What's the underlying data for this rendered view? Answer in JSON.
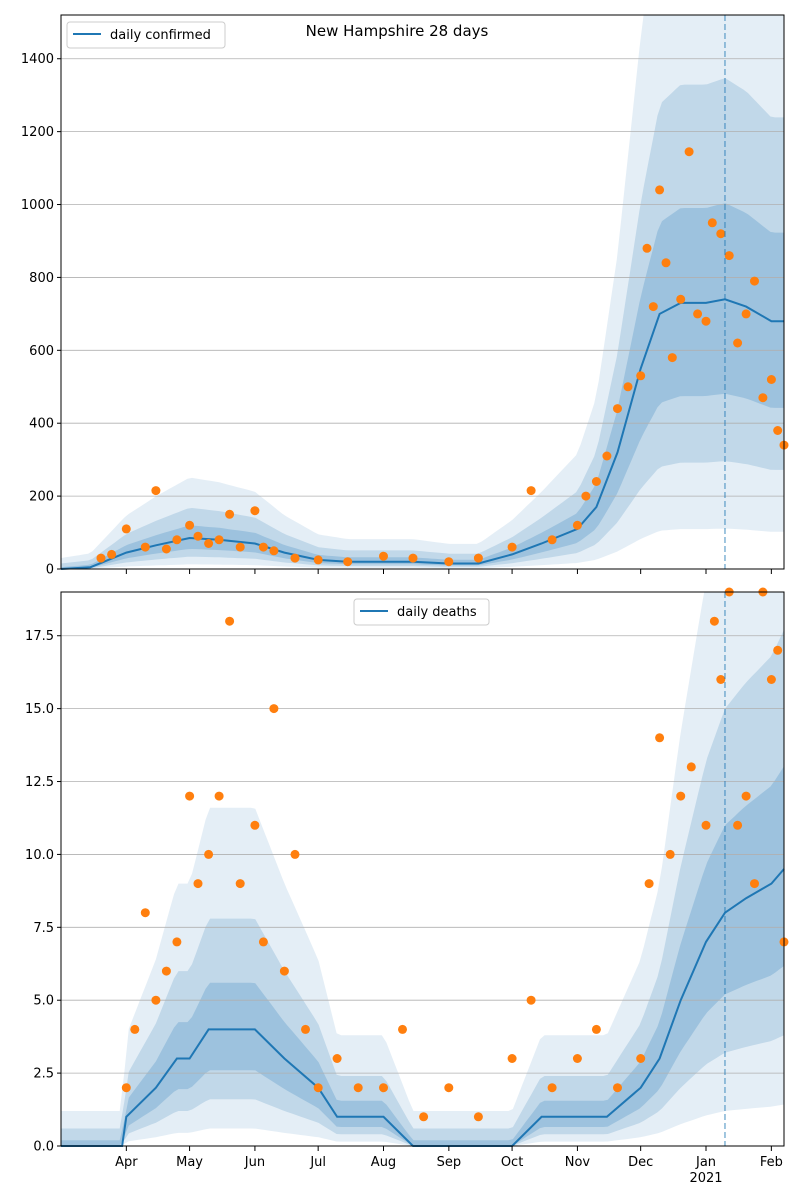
{
  "chart_data": [
    {
      "type": "line",
      "title": "New Hampshire 28 days",
      "xlabel": "",
      "ylabel": "",
      "ylim": [
        0,
        1520
      ],
      "yticks": [
        0,
        200,
        400,
        600,
        800,
        1000,
        1200,
        1400
      ],
      "grid": "horizontal",
      "legend": {
        "placement": "top-left",
        "entries": [
          "daily confirmed"
        ]
      },
      "series": [
        {
          "name": "daily confirmed",
          "kind": "line",
          "x": [
            "2020-03-01",
            "2020-03-15",
            "2020-04-01",
            "2020-04-15",
            "2020-05-01",
            "2020-05-15",
            "2020-06-01",
            "2020-06-15",
            "2020-07-01",
            "2020-07-15",
            "2020-08-01",
            "2020-08-15",
            "2020-09-01",
            "2020-09-15",
            "2020-10-01",
            "2020-10-15",
            "2020-11-01",
            "2020-11-10",
            "2020-11-20",
            "2020-12-01",
            "2020-12-10",
            "2020-12-20",
            "2021-01-01",
            "2021-01-10",
            "2021-01-20",
            "2021-02-01",
            "2021-02-07"
          ],
          "values": [
            0,
            5,
            45,
            65,
            85,
            80,
            70,
            45,
            25,
            20,
            20,
            20,
            15,
            15,
            40,
            70,
            110,
            170,
            320,
            550,
            700,
            730,
            730,
            740,
            720,
            680,
            680
          ]
        },
        {
          "name": "",
          "kind": "points",
          "x": [
            "2020-03-20",
            "2020-03-25",
            "2020-04-01",
            "2020-04-10",
            "2020-04-15",
            "2020-04-20",
            "2020-04-25",
            "2020-05-01",
            "2020-05-05",
            "2020-05-10",
            "2020-05-15",
            "2020-05-20",
            "2020-05-25",
            "2020-06-01",
            "2020-06-05",
            "2020-06-10",
            "2020-06-20",
            "2020-07-01",
            "2020-07-15",
            "2020-08-01",
            "2020-08-15",
            "2020-09-01",
            "2020-09-15",
            "2020-10-01",
            "2020-10-10",
            "2020-10-20",
            "2020-11-01",
            "2020-11-05",
            "2020-11-10",
            "2020-11-15",
            "2020-11-20",
            "2020-11-25",
            "2020-12-01",
            "2020-12-04",
            "2020-12-07",
            "2020-12-10",
            "2020-12-13",
            "2020-12-16",
            "2020-12-20",
            "2020-12-24",
            "2020-12-28",
            "2021-01-01",
            "2021-01-04",
            "2021-01-08",
            "2021-01-12",
            "2021-01-16",
            "2021-01-20",
            "2021-01-24",
            "2021-01-28",
            "2021-02-01",
            "2021-02-04",
            "2021-02-07"
          ],
          "values": [
            30,
            40,
            110,
            60,
            215,
            55,
            80,
            120,
            90,
            70,
            80,
            150,
            60,
            160,
            60,
            50,
            30,
            25,
            20,
            35,
            30,
            20,
            30,
            60,
            215,
            80,
            120,
            200,
            240,
            310,
            440,
            500,
            530,
            880,
            720,
            1040,
            840,
            580,
            740,
            1145,
            700,
            680,
            950,
            920,
            860,
            620,
            700,
            790,
            470,
            520,
            380,
            340
          ]
        }
      ]
    },
    {
      "type": "line",
      "title": "",
      "xlabel": "",
      "ylabel": "",
      "ylim": [
        0,
        19
      ],
      "yticks": [
        0.0,
        2.5,
        5.0,
        7.5,
        10.0,
        12.5,
        15.0,
        17.5
      ],
      "ytick_labels": [
        "0.0",
        "2.5",
        "5.0",
        "7.5",
        "10.0",
        "12.5",
        "15.0",
        "17.5"
      ],
      "grid": "horizontal",
      "legend": {
        "placement": "top-center",
        "entries": [
          "daily deaths"
        ]
      },
      "xticks": [
        "2020-04-01",
        "2020-05-01",
        "2020-06-01",
        "2020-07-01",
        "2020-08-01",
        "2020-09-01",
        "2020-10-01",
        "2020-11-01",
        "2020-12-01",
        "2021-01-01",
        "2021-02-01"
      ],
      "xtick_labels": [
        "Apr",
        "May",
        "Jun",
        "Jul",
        "Aug",
        "Sep",
        "Oct",
        "Nov",
        "Dec",
        "Jan",
        "Feb"
      ],
      "xtick_year": "2021",
      "series": [
        {
          "name": "daily deaths",
          "kind": "line",
          "x": [
            "2020-03-01",
            "2020-03-30",
            "2020-04-01",
            "2020-04-15",
            "2020-04-25",
            "2020-05-01",
            "2020-05-10",
            "2020-05-20",
            "2020-06-01",
            "2020-06-15",
            "2020-07-01",
            "2020-07-10",
            "2020-08-01",
            "2020-08-15",
            "2020-09-01",
            "2020-09-15",
            "2020-10-01",
            "2020-10-15",
            "2020-11-01",
            "2020-11-15",
            "2020-12-01",
            "2020-12-10",
            "2020-12-20",
            "2021-01-01",
            "2021-01-10",
            "2021-01-20",
            "2021-02-01",
            "2021-02-07"
          ],
          "values": [
            0,
            0,
            1,
            2,
            3,
            3,
            4,
            4,
            4,
            3,
            2,
            1,
            1,
            0,
            0,
            0,
            0,
            1,
            1,
            1,
            2,
            3,
            5,
            7,
            8,
            8.5,
            9,
            9.5
          ]
        },
        {
          "name": "",
          "kind": "points",
          "x": [
            "2020-04-01",
            "2020-04-05",
            "2020-04-10",
            "2020-04-15",
            "2020-04-20",
            "2020-04-25",
            "2020-05-01",
            "2020-05-05",
            "2020-05-10",
            "2020-05-15",
            "2020-05-20",
            "2020-05-25",
            "2020-06-01",
            "2020-06-05",
            "2020-06-10",
            "2020-06-15",
            "2020-06-20",
            "2020-06-25",
            "2020-07-01",
            "2020-07-10",
            "2020-07-20",
            "2020-08-01",
            "2020-08-10",
            "2020-08-20",
            "2020-09-01",
            "2020-09-15",
            "2020-10-01",
            "2020-10-10",
            "2020-10-20",
            "2020-11-01",
            "2020-11-10",
            "2020-11-20",
            "2020-12-01",
            "2020-12-05",
            "2020-12-10",
            "2020-12-15",
            "2020-12-20",
            "2020-12-25",
            "2021-01-01",
            "2021-01-05",
            "2021-01-08",
            "2021-01-12",
            "2021-01-16",
            "2021-01-20",
            "2021-01-24",
            "2021-01-28",
            "2021-02-01",
            "2021-02-04",
            "2021-02-07"
          ],
          "values": [
            2,
            4,
            8,
            5,
            6,
            7,
            12,
            9,
            10,
            12,
            18,
            9,
            11,
            7,
            15,
            6,
            10,
            4,
            2,
            3,
            2,
            2,
            4,
            1,
            2,
            1,
            3,
            5,
            2,
            3,
            4,
            2,
            3,
            9,
            14,
            10,
            12,
            13,
            11,
            18,
            16,
            19,
            11,
            12,
            9,
            19,
            16,
            17,
            7
          ]
        }
      ]
    }
  ]
}
